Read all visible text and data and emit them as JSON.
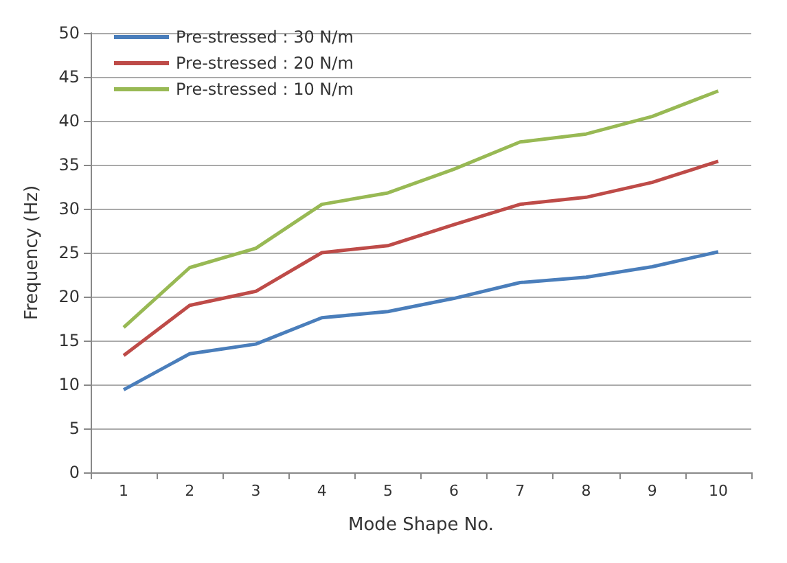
{
  "chart_data": {
    "type": "line",
    "xlabel": "Mode Shape No.",
    "ylabel": "Frequency (Hz)",
    "categories": [
      "1",
      "2",
      "3",
      "4",
      "5",
      "6",
      "7",
      "8",
      "9",
      "10"
    ],
    "series": [
      {
        "name": "Pre-stressed : 30 N/m",
        "color": "#4a7ebb",
        "values": [
          9.4,
          13.5,
          14.6,
          17.6,
          18.3,
          19.8,
          21.6,
          22.2,
          23.4,
          25.1
        ]
      },
      {
        "name": "Pre-stressed : 20 N/m",
        "color": "#be4b48",
        "values": [
          13.3,
          19.0,
          20.6,
          25.0,
          25.8,
          28.2,
          30.5,
          31.3,
          33.0,
          35.4
        ]
      },
      {
        "name": "Pre-stressed : 10 N/m",
        "color": "#98b954",
        "values": [
          16.5,
          23.3,
          25.5,
          30.5,
          31.8,
          34.5,
          37.6,
          38.5,
          40.5,
          43.4
        ]
      }
    ],
    "ylim": [
      0,
      50
    ],
    "yticks": [
      0,
      5,
      10,
      15,
      20,
      25,
      30,
      35,
      40,
      45,
      50
    ],
    "grid": "y",
    "legend": "top left",
    "marker": "none",
    "line_style": "solid"
  }
}
